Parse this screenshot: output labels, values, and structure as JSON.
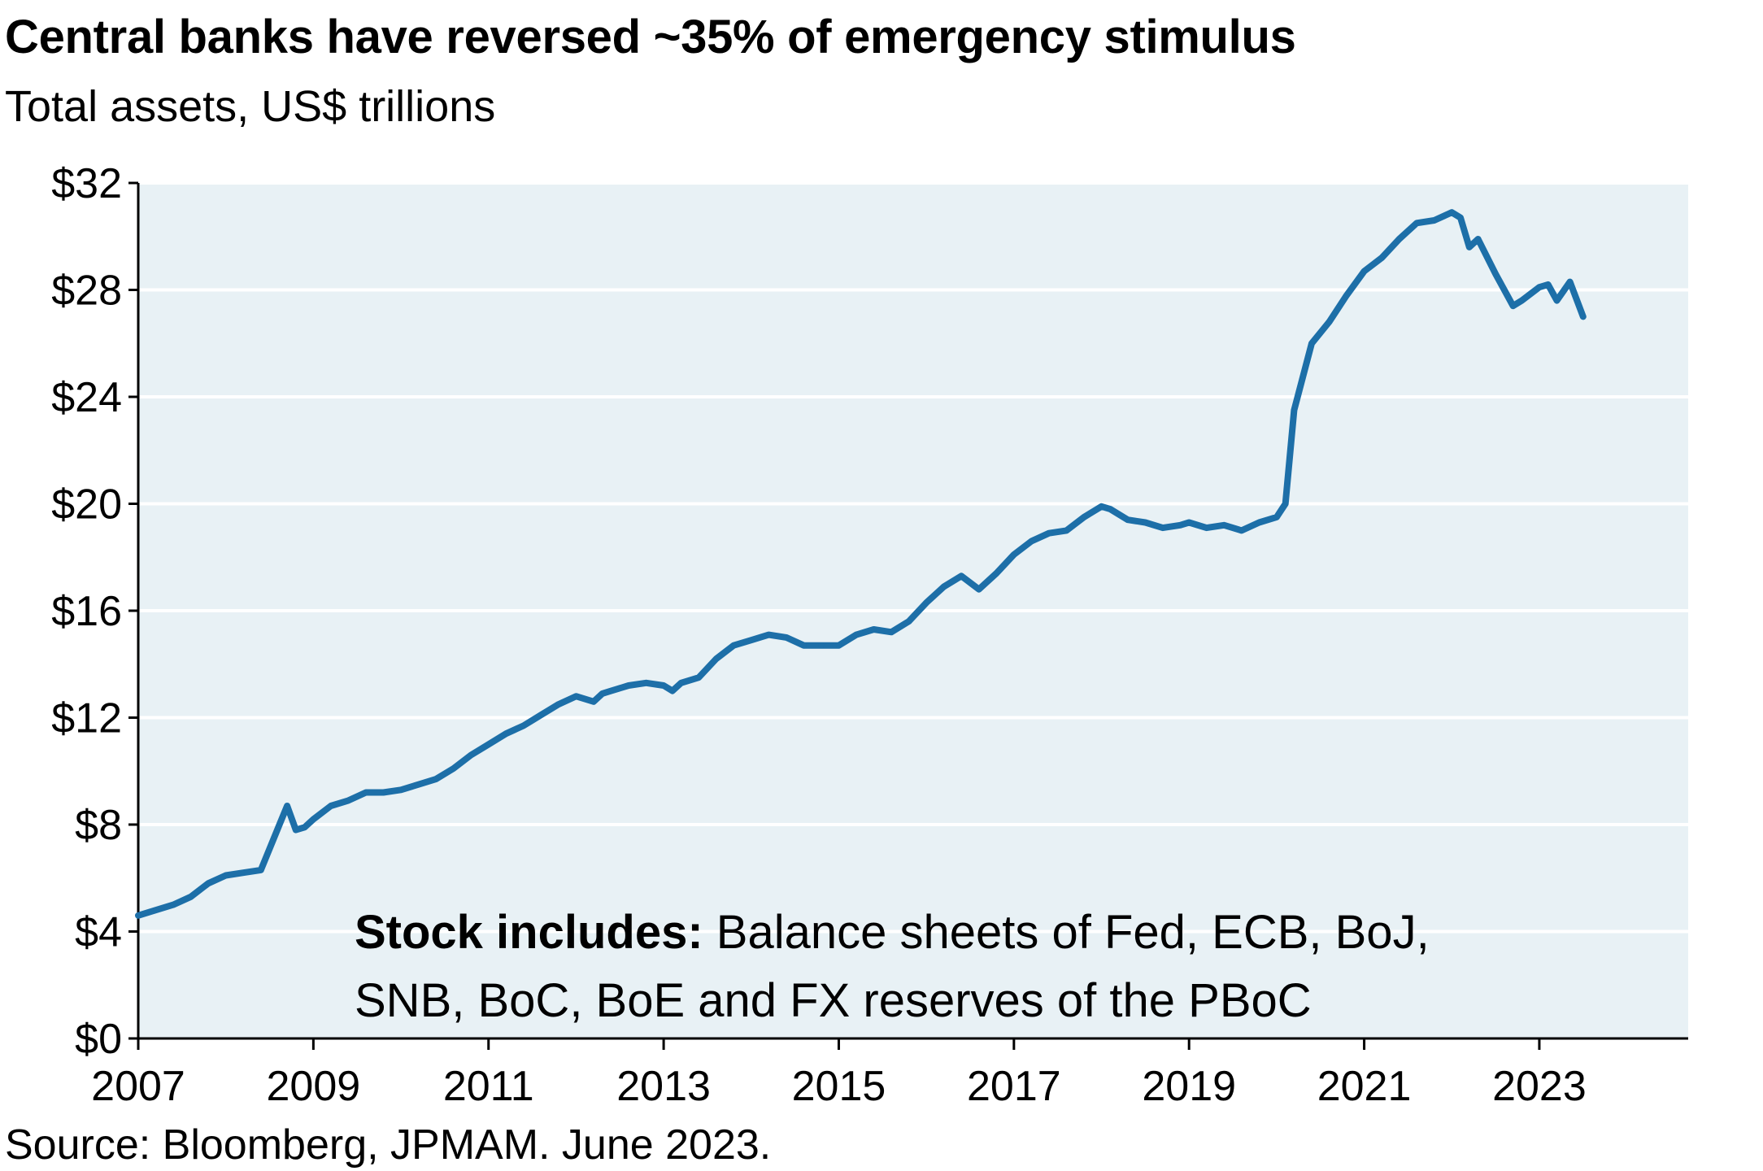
{
  "header": {
    "title": "Central banks have reversed ~35% of emergency stimulus",
    "subtitle": "Total assets, US$ trillions"
  },
  "footer": {
    "source": "Source: Bloomberg, JPMAM. June 2023."
  },
  "annotation": {
    "bold": "Stock includes:",
    "line1": " Balance sheets of Fed, ECB, BoJ,",
    "line2": "SNB, BoC, BoE and FX reserves of the PBoC"
  },
  "colors": {
    "plot_background": "#e8f1f5",
    "line": "#1d6fa8",
    "gridline": "#ffffff",
    "axis": "#000000"
  },
  "chart_data": {
    "type": "line",
    "title": "Central banks have reversed ~35% of emergency stimulus",
    "subtitle": "Total assets, US$ trillions",
    "xlabel": "",
    "ylabel": "",
    "xlim": [
      2007.0,
      2024.7
    ],
    "ylim": [
      0,
      32
    ],
    "y_ticks": [
      0,
      4,
      8,
      12,
      16,
      20,
      24,
      28,
      32
    ],
    "y_tick_labels": [
      "$0",
      "$4",
      "$8",
      "$12",
      "$16",
      "$20",
      "$24",
      "$28",
      "$32"
    ],
    "x_ticks": [
      2007,
      2009,
      2011,
      2013,
      2015,
      2017,
      2019,
      2021,
      2023
    ],
    "x_tick_labels": [
      "2007",
      "2009",
      "2011",
      "2013",
      "2015",
      "2017",
      "2019",
      "2021",
      "2023"
    ],
    "grid": "horizontal",
    "x": [
      2007.0,
      2007.2,
      2007.4,
      2007.6,
      2007.8,
      2008.0,
      2008.2,
      2008.4,
      2008.6,
      2008.7,
      2008.8,
      2008.9,
      2009.0,
      2009.2,
      2009.4,
      2009.6,
      2009.8,
      2010.0,
      2010.2,
      2010.4,
      2010.6,
      2010.8,
      2011.0,
      2011.2,
      2011.4,
      2011.6,
      2011.8,
      2012.0,
      2012.2,
      2012.3,
      2012.4,
      2012.6,
      2012.8,
      2013.0,
      2013.1,
      2013.2,
      2013.4,
      2013.6,
      2013.8,
      2014.0,
      2014.2,
      2014.4,
      2014.6,
      2014.8,
      2015.0,
      2015.2,
      2015.4,
      2015.6,
      2015.8,
      2016.0,
      2016.2,
      2016.4,
      2016.6,
      2016.8,
      2017.0,
      2017.2,
      2017.4,
      2017.6,
      2017.8,
      2018.0,
      2018.1,
      2018.3,
      2018.5,
      2018.7,
      2018.9,
      2019.0,
      2019.2,
      2019.4,
      2019.6,
      2019.8,
      2020.0,
      2020.1,
      2020.2,
      2020.4,
      2020.6,
      2020.8,
      2021.0,
      2021.2,
      2021.4,
      2021.6,
      2021.8,
      2022.0,
      2022.1,
      2022.2,
      2022.3,
      2022.5,
      2022.7,
      2022.8,
      2023.0,
      2023.1,
      2023.2,
      2023.35,
      2023.5
    ],
    "series": [
      {
        "values": [
          4.6,
          4.8,
          5.0,
          5.3,
          5.8,
          6.1,
          6.2,
          6.3,
          7.9,
          8.7,
          7.8,
          7.9,
          8.2,
          8.7,
          8.9,
          9.2,
          9.2,
          9.3,
          9.5,
          9.7,
          10.1,
          10.6,
          11.0,
          11.4,
          11.7,
          12.1,
          12.5,
          12.8,
          12.6,
          12.9,
          13.0,
          13.2,
          13.3,
          13.2,
          13.0,
          13.3,
          13.5,
          14.2,
          14.7,
          14.9,
          15.1,
          15.0,
          14.7,
          14.7,
          14.7,
          15.1,
          15.3,
          15.2,
          15.6,
          16.3,
          16.9,
          17.3,
          16.8,
          17.4,
          18.1,
          18.6,
          18.9,
          19.0,
          19.5,
          19.9,
          19.8,
          19.4,
          19.3,
          19.1,
          19.2,
          19.3,
          19.1,
          19.2,
          19.0,
          19.3,
          19.5,
          20.0,
          23.5,
          26.0,
          26.8,
          27.8,
          28.7,
          29.2,
          29.9,
          30.5,
          30.6,
          30.9,
          30.7,
          29.6,
          29.9,
          28.6,
          27.4,
          27.6,
          28.1,
          28.2,
          27.6,
          28.3,
          27.0
        ]
      }
    ]
  }
}
